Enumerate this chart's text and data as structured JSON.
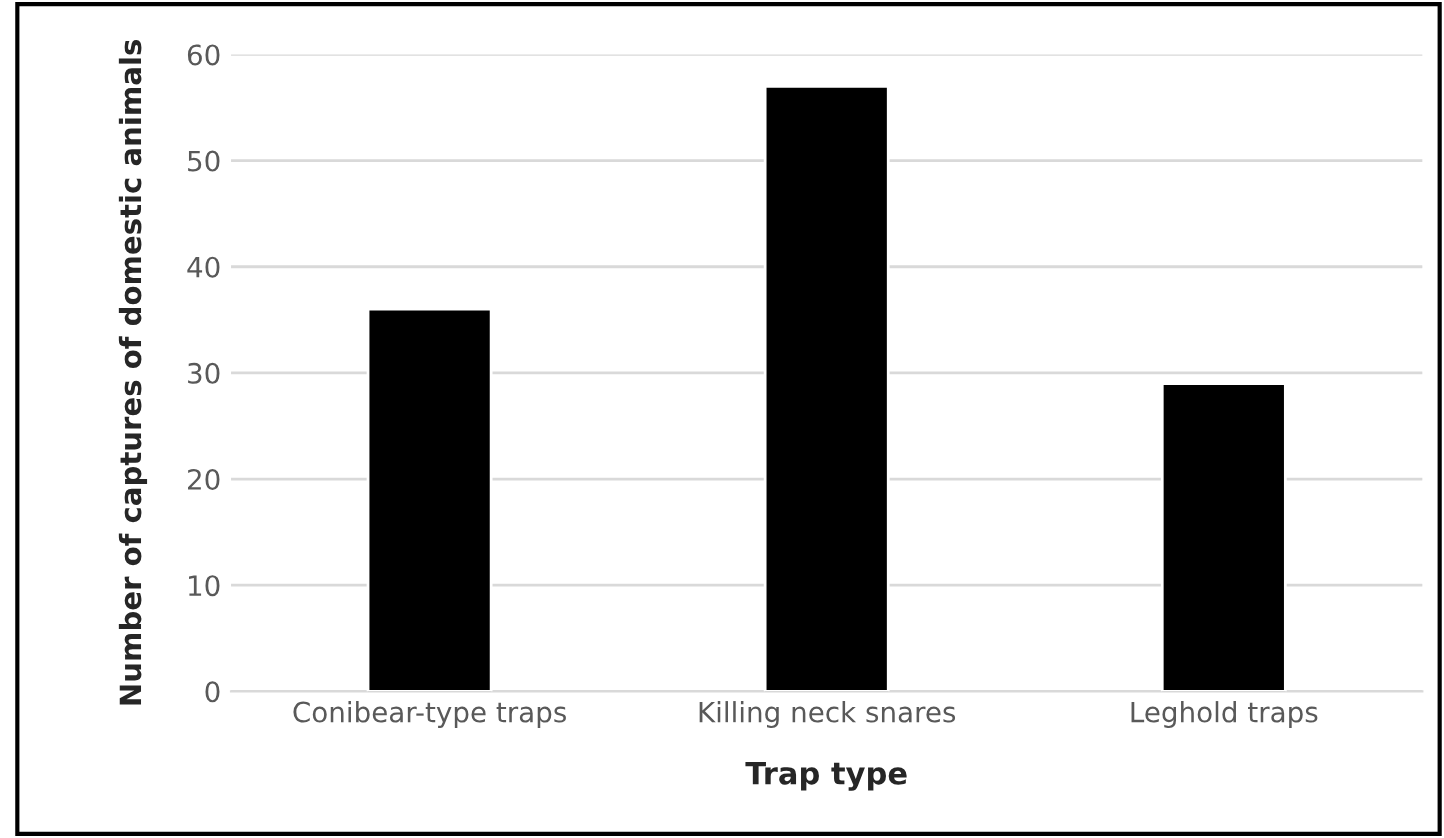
{
  "chart_data": {
    "type": "bar",
    "xlabel": "Trap type",
    "ylabel": "Number of captures of domestic animals",
    "categories": [
      "Conibear-type traps",
      "Killing neck snares",
      "Leghold traps"
    ],
    "values": [
      36,
      57,
      29
    ],
    "color": "#000000",
    "ylim": [
      0,
      60
    ],
    "yticks": [
      0,
      10,
      20,
      30,
      40,
      50,
      60
    ],
    "grid": "y"
  }
}
